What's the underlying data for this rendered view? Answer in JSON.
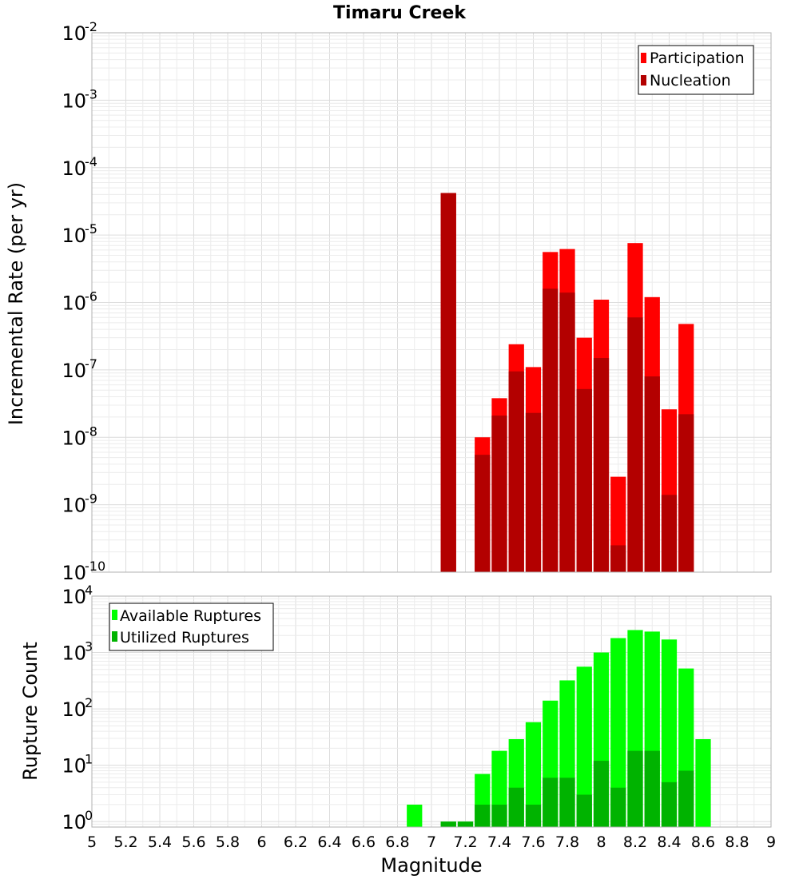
{
  "title": "Timaru Creek",
  "chart_data": [
    {
      "type": "bar",
      "panel": "top",
      "ylabel": "Incremental Rate (per yr)",
      "xlabel": "",
      "yscale": "log",
      "ylim": [
        1e-10,
        0.01
      ],
      "xlim": [
        5,
        9
      ],
      "grid": true,
      "legend_position": "top-right",
      "bar_width": 0.1,
      "series": [
        {
          "name": "Participation",
          "color": "#ff0000",
          "x": [
            7.1,
            7.3,
            7.4,
            7.5,
            7.6,
            7.7,
            7.8,
            7.9,
            8.0,
            8.1,
            8.2,
            8.3,
            8.4,
            8.5
          ],
          "values": [
            4.2e-05,
            1e-08,
            3.8e-08,
            2.4e-07,
            1.1e-07,
            5.6e-06,
            6.2e-06,
            3e-07,
            1.1e-06,
            2.6e-09,
            7.6e-06,
            1.2e-06,
            2.6e-08,
            4.8e-07
          ]
        },
        {
          "name": "Nucleation",
          "color": "#b30000",
          "x": [
            7.1,
            7.3,
            7.4,
            7.5,
            7.6,
            7.7,
            7.8,
            7.9,
            8.0,
            8.1,
            8.2,
            8.3,
            8.4,
            8.5
          ],
          "values": [
            4.2e-05,
            5.5e-09,
            2.1e-08,
            9.5e-08,
            2.3e-08,
            1.6e-06,
            1.4e-06,
            5.2e-08,
            1.5e-07,
            2.5e-10,
            6e-07,
            8e-08,
            1.4e-09,
            2.2e-08
          ]
        }
      ]
    },
    {
      "type": "bar",
      "panel": "bottom",
      "ylabel": "Rupture Count",
      "xlabel": "Magnitude",
      "yscale": "log",
      "ylim": [
        0.8,
        10000
      ],
      "xlim": [
        5,
        9
      ],
      "xticks": [
        5,
        5.2,
        5.4,
        5.6,
        5.8,
        6,
        6.2,
        6.4,
        6.6,
        6.8,
        7,
        7.2,
        7.4,
        7.6,
        7.8,
        8,
        8.2,
        8.4,
        8.6,
        8.8,
        9
      ],
      "grid": true,
      "legend_position": "top-left",
      "bar_width": 0.1,
      "series": [
        {
          "name": "Available Ruptures",
          "color": "#00ff00",
          "x": [
            6.9,
            7.1,
            7.2,
            7.3,
            7.4,
            7.5,
            7.6,
            7.7,
            7.8,
            7.9,
            8.0,
            8.1,
            8.2,
            8.3,
            8.4,
            8.5,
            8.6
          ],
          "values": [
            2,
            1,
            1,
            7,
            18,
            29,
            58,
            140,
            320,
            560,
            1000,
            1800,
            2500,
            2350,
            1700,
            520,
            29
          ]
        },
        {
          "name": "Utilized Ruptures",
          "color": "#00b300",
          "x": [
            7.1,
            7.2,
            7.3,
            7.4,
            7.5,
            7.6,
            7.7,
            7.8,
            7.9,
            8.0,
            8.1,
            8.2,
            8.3,
            8.4,
            8.5
          ],
          "values": [
            1,
            1,
            2,
            2,
            4,
            2,
            6,
            6,
            3,
            12,
            4,
            18,
            18,
            5,
            8
          ]
        }
      ]
    }
  ]
}
